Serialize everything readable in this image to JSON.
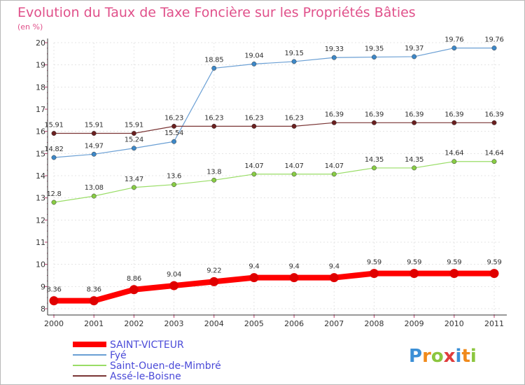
{
  "chart_data": {
    "type": "line",
    "title": "Evolution du Taux de Taxe Foncière sur les Propriétés Bâties",
    "subtitle": "(en %)",
    "xlabel": "",
    "ylabel": "(en %)",
    "categories": [
      "2000",
      "2001",
      "2002",
      "2003",
      "2004",
      "2005",
      "2006",
      "2007",
      "2008",
      "2009",
      "2010",
      "2011"
    ],
    "ylim": [
      8,
      20
    ],
    "yticks": [
      "8",
      "9",
      "10",
      "11",
      "12",
      "13",
      "14",
      "15",
      "16",
      "17",
      "18",
      "19",
      "20"
    ],
    "grid": true,
    "legend_position": "bottom-left",
    "series": [
      {
        "name": "SAINT-VICTEUR",
        "color": "#ff0000",
        "marker_color": "#e00000",
        "thick": true,
        "values": [
          8.36,
          8.36,
          8.86,
          9.04,
          9.22,
          9.4,
          9.4,
          9.4,
          9.59,
          9.59,
          9.59,
          9.59
        ],
        "labels": [
          "8.36",
          "8.36",
          "8.86",
          "9.04",
          "9.22",
          "9.4",
          "9.4",
          "9.4",
          "9.59",
          "9.59",
          "9.59",
          "9.59"
        ]
      },
      {
        "name": "Fyé",
        "color": "#6a9fd4",
        "marker_color": "#3d88c8",
        "thick": false,
        "values": [
          14.82,
          14.97,
          15.24,
          15.54,
          18.85,
          19.04,
          19.15,
          19.33,
          19.35,
          19.37,
          19.76,
          19.76
        ],
        "labels": [
          "14.82",
          "14.97",
          "15.24",
          "15.54",
          "18.85",
          "19.04",
          "19.15",
          "19.33",
          "19.35",
          "19.37",
          "19.76",
          "19.76"
        ]
      },
      {
        "name": "Saint-Ouen-de-Mimbré",
        "color": "#99dd66",
        "marker_color": "#88cc44",
        "thick": false,
        "values": [
          12.8,
          13.08,
          13.47,
          13.6,
          13.8,
          14.07,
          14.07,
          14.07,
          14.35,
          14.35,
          14.64,
          14.64
        ],
        "labels": [
          "12.8",
          "13.08",
          "13.47",
          "13.6",
          "13.8",
          "14.07",
          "14.07",
          "14.07",
          "14.35",
          "14.35",
          "14.64",
          "14.64"
        ]
      },
      {
        "name": "Assé-le-Boisne",
        "color": "#7a3535",
        "marker_color": "#6b2020",
        "thick": false,
        "values": [
          15.91,
          15.91,
          15.91,
          16.23,
          16.23,
          16.23,
          16.23,
          16.39,
          16.39,
          16.39,
          16.39,
          16.39
        ],
        "labels": [
          "15.91",
          "15.91",
          "15.91",
          "16.23",
          "16.23",
          "16.23",
          "16.23",
          "16.39",
          "16.39",
          "16.39",
          "16.39",
          "16.39"
        ]
      }
    ]
  },
  "logo": {
    "text": "Proxiti",
    "letters": [
      "P",
      "r",
      "o",
      "x",
      "i",
      "t",
      "i"
    ],
    "colors": [
      "#3b8fd6",
      "#f08a1c",
      "#8cc63f",
      "#e03c3c",
      "#3b8fd6",
      "#f08a1c",
      "#8cc63f"
    ]
  }
}
